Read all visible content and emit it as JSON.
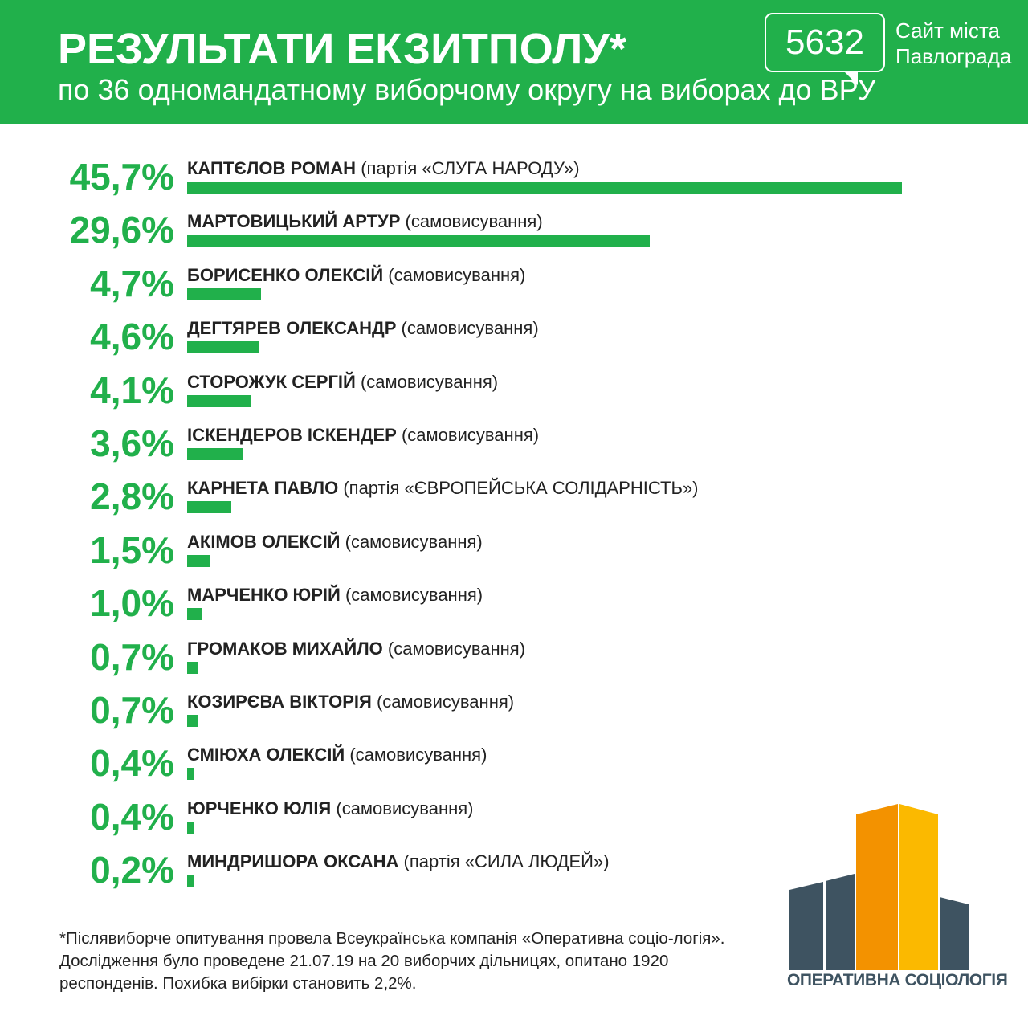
{
  "header": {
    "title": "РЕЗУЛЬТАТИ ЕКЗИТПОЛУ*",
    "subtitle": "по 36 одномандатному виборчому округу на виборах до ВРУ"
  },
  "site_logo": {
    "number": "5632",
    "line1": "Сайт міста",
    "line2": "Павлограда"
  },
  "chart_data": {
    "type": "bar",
    "orientation": "horizontal",
    "title": "РЕЗУЛЬТАТИ ЕКЗИТПОЛУ*",
    "unit": "%",
    "bar_color": "#21b04b",
    "rows": [
      {
        "label": "45,7%",
        "value": 45.7,
        "name": "КАПТЄЛОВ РОМАН",
        "affiliation": "(партія «СЛУГА НАРОДУ»)"
      },
      {
        "label": "29,6%",
        "value": 29.6,
        "name": "МАРТОВИЦЬКИЙ АРТУР",
        "affiliation": "(самовисування)"
      },
      {
        "label": "4,7%",
        "value": 4.7,
        "name": "БОРИСЕНКО ОЛЕКСІЙ",
        "affiliation": "(самовисування)"
      },
      {
        "label": "4,6%",
        "value": 4.6,
        "name": "ДЕГТЯРЕВ ОЛЕКСАНДР",
        "affiliation": "(самовисування)"
      },
      {
        "label": "4,1%",
        "value": 4.1,
        "name": "СТОРОЖУК СЕРГІЙ",
        "affiliation": "(самовисування)"
      },
      {
        "label": "3,6%",
        "value": 3.6,
        "name": "ІСКЕНДЕРОВ ІСКЕНДЕР",
        "affiliation": "(самовисування)"
      },
      {
        "label": "2,8%",
        "value": 2.8,
        "name": "КАРНЕТА ПАВЛО",
        "affiliation": "(партія «ЄВРОПЕЙСЬКА СОЛІДАРНІСТЬ»)"
      },
      {
        "label": "1,5%",
        "value": 1.5,
        "name": "АКІМОВ ОЛЕКСІЙ",
        "affiliation": "(самовисування)"
      },
      {
        "label": "1,0%",
        "value": 1.0,
        "name": "МАРЧЕНКО ЮРІЙ",
        "affiliation": "(самовисування)"
      },
      {
        "label": "0,7%",
        "value": 0.7,
        "name": "ГРОМАКОВ МИХАЙЛО",
        "affiliation": "(самовисування)"
      },
      {
        "label": "0,7%",
        "value": 0.7,
        "name": "КОЗИРЄВА ВІКТОРІЯ",
        "affiliation": "(самовисування)"
      },
      {
        "label": "0,4%",
        "value": 0.4,
        "name": "СМІЮХА ОЛЕКСІЙ",
        "affiliation": "(самовисування)"
      },
      {
        "label": "0,4%",
        "value": 0.4,
        "name": "ЮРЧЕНКО ЮЛІЯ",
        "affiliation": "(самовисування)"
      },
      {
        "label": "0,2%",
        "value": 0.2,
        "name": "МИНДРИШОРА ОКСАНА",
        "affiliation": "(партія «СИЛА ЛЮДЕЙ»)"
      }
    ]
  },
  "footnote": "*Післявиборче опитування провела Всеукраїнська компанія «Оперативна соціо-логія». Дослідження було проведене 21.07.19 на 20 виборчих дільницях, опитано 1920 респонденів. Похибка вибірки становить 2,2%.",
  "brand": {
    "name": "ОПЕРАТИВНА СОЦІОЛОГІЯ",
    "colors": {
      "dark": "#3e5361",
      "orange": "#f39200",
      "yellow": "#fbb900"
    }
  }
}
